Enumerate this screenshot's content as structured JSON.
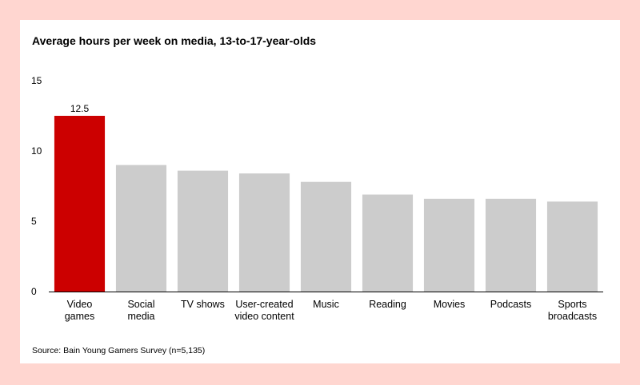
{
  "page": {
    "background": "#FFD6D0",
    "card_background": "#FFFFFF",
    "source": "Source: Bain Young Gamers Survey (n=5,135)"
  },
  "chart_data": {
    "type": "bar",
    "title": "Average hours per week on media, 13-to-17-year-olds",
    "xlabel": "",
    "ylabel": "",
    "ylim": [
      0,
      15
    ],
    "yticks": [
      0,
      5,
      10,
      15
    ],
    "grid": false,
    "categories": [
      [
        "Video",
        "games"
      ],
      [
        "Social",
        "media"
      ],
      [
        "TV shows"
      ],
      [
        "User-created",
        "video content"
      ],
      [
        "Music"
      ],
      [
        "Reading"
      ],
      [
        "Movies"
      ],
      [
        "Podcasts"
      ],
      [
        "Sports",
        "broadcasts"
      ]
    ],
    "values": [
      12.5,
      9.0,
      8.6,
      8.4,
      7.8,
      6.9,
      6.6,
      6.6,
      6.4
    ],
    "data_labels": [
      "12.5",
      "",
      "",
      "",
      "",
      "",
      "",
      "",
      ""
    ],
    "colors": {
      "highlight": "#CC0000",
      "default": "#CCCCCC",
      "axis": "#000000"
    },
    "highlight_index": 0
  }
}
